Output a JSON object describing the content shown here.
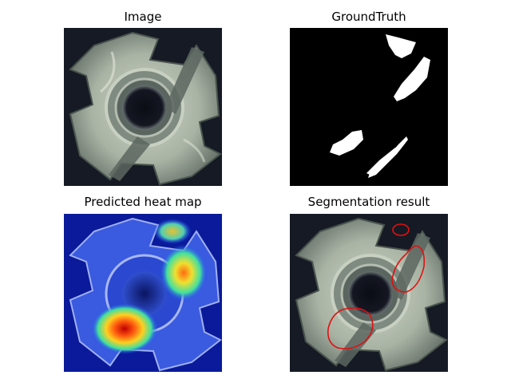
{
  "figure": {
    "panels": [
      {
        "id": "image",
        "title": "Image"
      },
      {
        "id": "groundtruth",
        "title": "GroundTruth"
      },
      {
        "id": "heatmap",
        "title": "Predicted heat map"
      },
      {
        "id": "segmentation",
        "title": "Segmentation result"
      }
    ]
  },
  "colors": {
    "background_dark": "#161a24",
    "nut_metal": "#a9b3a4",
    "groundtruth_bg": "#000000",
    "groundtruth_mask": "#ffffff",
    "heat_low": "#0a1fb0",
    "heat_high": "#d01010",
    "contour": "#e01010"
  }
}
